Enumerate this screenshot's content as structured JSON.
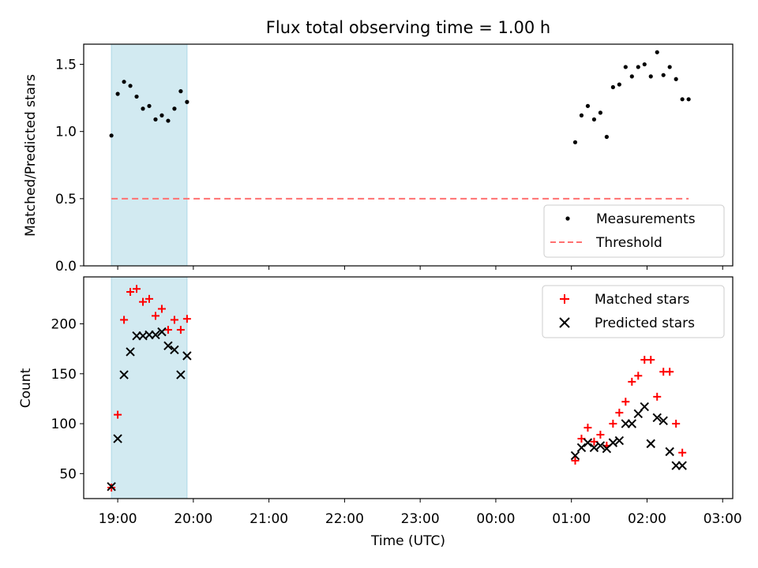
{
  "chart_data": {
    "title": "Flux total observing time = 1.00 h",
    "xlabel": "Time (UTC)",
    "time_axis": {
      "origin": "18:00",
      "unit": "minutes",
      "xlim": [
        33,
        548
      ],
      "ticks": [
        60,
        120,
        180,
        240,
        300,
        360,
        420,
        480,
        540
      ],
      "tick_labels": [
        "19:00",
        "20:00",
        "21:00",
        "22:00",
        "23:00",
        "00:00",
        "01:00",
        "02:00",
        "03:00"
      ]
    },
    "highlight_span": {
      "x": [
        55,
        115
      ],
      "color": "#add8e6"
    },
    "panels": [
      {
        "name": "ratio",
        "type": "scatter",
        "ylabel": "Matched/Predicted stars",
        "ylim": [
          0,
          1.65
        ],
        "yticks": [
          0,
          0.5,
          1.0,
          1.5
        ],
        "ytick_labels": [
          "0.0",
          "0.5",
          "1.0",
          "1.5"
        ],
        "legend": {
          "placement": "lower-right"
        },
        "series": [
          {
            "name": "Measurements",
            "marker": "dot",
            "color": "#000000",
            "x": [
              55,
              60,
              65,
              70,
              75,
              80,
              85,
              90,
              95,
              100,
              105,
              110,
              115,
              423,
              428,
              433,
              438,
              443,
              448,
              453,
              458,
              463,
              468,
              473,
              478,
              483,
              488,
              493,
              498,
              503,
              508,
              513
            ],
            "y": [
              0.97,
              1.28,
              1.37,
              1.34,
              1.26,
              1.17,
              1.19,
              1.09,
              1.12,
              1.08,
              1.17,
              1.3,
              1.22,
              0.92,
              1.12,
              1.19,
              1.09,
              1.14,
              0.96,
              1.33,
              1.35,
              1.48,
              1.41,
              1.48,
              1.5,
              1.41,
              1.59,
              1.42,
              1.48,
              1.39,
              1.24,
              1.24
            ]
          },
          {
            "name": "Threshold",
            "style": "dashed",
            "color": "#ff7070",
            "x": [
              55,
              513
            ],
            "y": [
              0.5,
              0.5
            ]
          }
        ]
      },
      {
        "name": "counts",
        "type": "scatter",
        "ylabel": "Count",
        "ylim": [
          25,
          247
        ],
        "yticks": [
          50,
          100,
          150,
          200
        ],
        "ytick_labels": [
          "50",
          "100",
          "150",
          "200"
        ],
        "legend": {
          "placement": "upper-right"
        },
        "series": [
          {
            "name": "Matched stars",
            "marker": "plus",
            "color": "#ff0000",
            "x": [
              55,
              60,
              65,
              70,
              75,
              80,
              85,
              90,
              95,
              100,
              105,
              110,
              115,
              423,
              428,
              433,
              438,
              443,
              448,
              453,
              458,
              463,
              468,
              473,
              478,
              483,
              488,
              493,
              498,
              503,
              508
            ],
            "y": [
              36,
              109,
              204,
              232,
              235,
              222,
              225,
              208,
              215,
              194,
              204,
              194,
              205,
              63,
              85,
              96,
              82,
              89,
              78,
              100,
              111,
              122,
              142,
              148,
              164,
              164,
              127,
              152,
              152,
              100,
              71
            ]
          },
          {
            "name": "Predicted stars",
            "marker": "x",
            "color": "#000000",
            "x": [
              55,
              60,
              65,
              70,
              75,
              80,
              85,
              90,
              95,
              100,
              105,
              110,
              115,
              423,
              428,
              433,
              438,
              443,
              448,
              453,
              458,
              463,
              468,
              473,
              478,
              483,
              488,
              493,
              498,
              503,
              508
            ],
            "y": [
              37,
              85,
              149,
              172,
              188,
              188,
              189,
              189,
              192,
              178,
              174,
              149,
              168,
              68,
              76,
              81,
              76,
              78,
              75,
              81,
              83,
              100,
              100,
              110,
              117,
              80,
              106,
              103,
              72,
              58,
              58
            ]
          }
        ]
      }
    ]
  }
}
